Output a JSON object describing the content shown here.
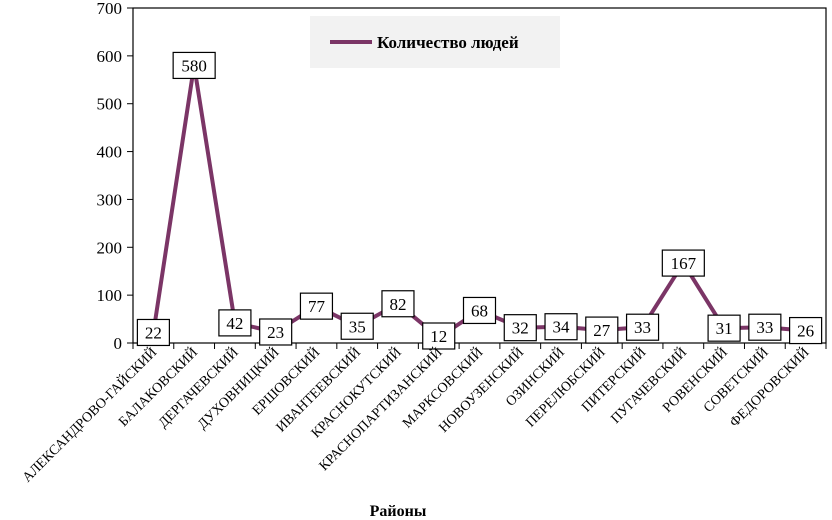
{
  "chart_data": {
    "type": "line",
    "title": "",
    "xlabel": "Районы",
    "ylabel": "",
    "ylim": [
      0,
      700
    ],
    "yticks": [
      0,
      100,
      200,
      300,
      400,
      500,
      600,
      700
    ],
    "grid": false,
    "legend_position": "top",
    "categories": [
      "АЛЕКСАНДРОВО-ГАЙСКИЙ",
      "БАЛАКОВСКИЙ",
      "ДЕРГАЧЕВСКИЙ",
      "ДУХОВНИЦКИЙ",
      "ЕРШОВСКИЙ",
      "ИВАНТЕЕВСКИЙ",
      "КРАСНОКУТСКИЙ",
      "КРАСНОПАРТИЗАНСКИЙ",
      "МАРКСОВСКИЙ",
      "НОВОУЗЕНСКИЙ",
      "ОЗИНСКИЙ",
      "ПЕРЕЛЮБСКИЙ",
      "ПИТЕРСКИЙ",
      "ПУГАЧЕВСКИЙ",
      "РОВЕНСКИЙ",
      "СОВЕТСКИЙ",
      "ФЕДОРОВСКИЙ"
    ],
    "series": [
      {
        "name": "Количество людей",
        "color": "#7b3566",
        "values": [
          22,
          580,
          42,
          23,
          77,
          35,
          82,
          12,
          68,
          32,
          34,
          27,
          33,
          167,
          31,
          33,
          26
        ]
      }
    ]
  }
}
